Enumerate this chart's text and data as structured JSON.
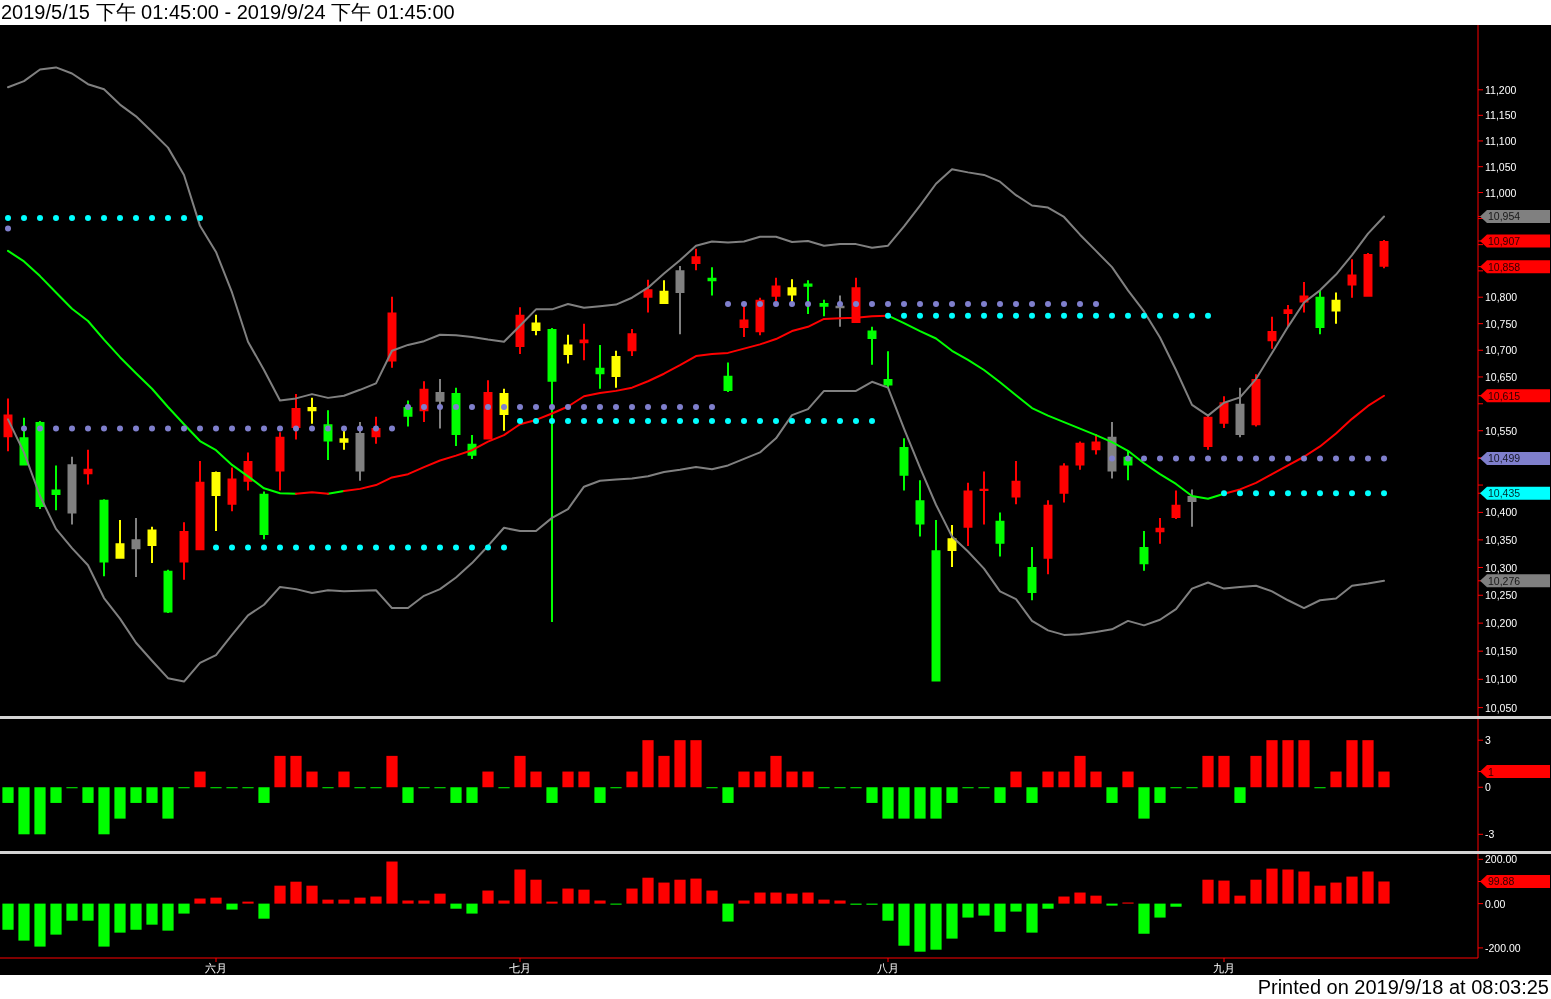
{
  "chart_data": [
    {
      "type": "candlestick",
      "title": "2019/5/15 下午 01:45:00 - 2019/9/24 下午 01:45:00",
      "categories": [
        null,
        null,
        null,
        null,
        null,
        null,
        null,
        null,
        null,
        null,
        null,
        null,
        null,
        null,
        null,
        null,
        null,
        null,
        null,
        null,
        null,
        null,
        null,
        null,
        null,
        null,
        null,
        null,
        null,
        null,
        null,
        null,
        null,
        null,
        null,
        null,
        null,
        null,
        null,
        null,
        null,
        null,
        null,
        null,
        null,
        null,
        null,
        null,
        null,
        null,
        null,
        null,
        null,
        null,
        null,
        null,
        null,
        null,
        null,
        null,
        null,
        null,
        null,
        null,
        null,
        null,
        null,
        null,
        null,
        null,
        null,
        null,
        null,
        null,
        null,
        null,
        null,
        null,
        null,
        null,
        null,
        null,
        null,
        null,
        null,
        null,
        null,
        null,
        null,
        null,
        null,
        null
      ],
      "ohlc": [
        [
          10538,
          10610,
          10512,
          10580
        ],
        [
          10538,
          10574,
          10486,
          10486
        ],
        [
          10566,
          10568,
          10406,
          10410
        ],
        [
          10442,
          10486,
          10404,
          10432
        ],
        [
          10488,
          10502,
          10378,
          10398
        ],
        [
          10470,
          10515,
          10451,
          10480
        ],
        [
          10423,
          10424,
          10284,
          10309
        ],
        [
          10316,
          10386,
          10316,
          10344
        ],
        [
          10351,
          10390,
          10283,
          10333
        ],
        [
          10339,
          10374,
          10308,
          10369
        ],
        [
          10294,
          10296,
          10218,
          10219
        ],
        [
          10309,
          10382,
          10278,
          10366
        ],
        [
          10331,
          10494,
          10331,
          10456
        ],
        [
          10430,
          10475,
          10366,
          10474
        ],
        [
          10414,
          10482,
          10402,
          10462
        ],
        [
          10456,
          10510,
          10440,
          10494
        ],
        [
          10434,
          10438,
          10351,
          10359
        ],
        [
          10475,
          10547,
          10440,
          10539
        ],
        [
          10555,
          10618,
          10534,
          10592
        ],
        [
          10586,
          10611,
          10563,
          10594
        ],
        [
          10562,
          10588,
          10496,
          10530
        ],
        [
          10528,
          10550,
          10515,
          10536
        ],
        [
          10546,
          10566,
          10458,
          10475
        ],
        [
          10538,
          10576,
          10526,
          10555
        ],
        [
          10679,
          10801,
          10667,
          10771
        ],
        [
          10594,
          10606,
          10558,
          10576
        ],
        [
          10586,
          10642,
          10566,
          10628
        ],
        [
          10622,
          10646,
          10554,
          10604
        ],
        [
          10620,
          10630,
          10522,
          10542
        ],
        [
          10526,
          10542,
          10498,
          10504
        ],
        [
          10534,
          10644,
          10534,
          10622
        ],
        [
          10579,
          10628,
          10550,
          10620
        ],
        [
          10706,
          10781,
          10693,
          10767
        ],
        [
          10736,
          10767,
          10728,
          10752
        ],
        [
          10740,
          10742,
          10202,
          10641
        ],
        [
          10691,
          10729,
          10675,
          10711
        ],
        [
          10713,
          10750,
          10681,
          10720
        ],
        [
          10667,
          10710,
          10628,
          10655
        ],
        [
          10650,
          10699,
          10630,
          10689
        ],
        [
          10698,
          10740,
          10689,
          10732
        ],
        [
          10799,
          10833,
          10771,
          10815
        ],
        [
          10787,
          10832,
          10787,
          10812
        ],
        [
          10851,
          10859,
          10730,
          10808
        ],
        [
          10863,
          10892,
          10851,
          10878
        ],
        [
          10837,
          10857,
          10803,
          10830
        ],
        [
          10652,
          10677,
          10622,
          10624
        ],
        [
          10742,
          10785,
          10725,
          10758
        ],
        [
          10734,
          10799,
          10728,
          10795
        ],
        [
          10801,
          10837,
          10793,
          10822
        ],
        [
          10803,
          10834,
          10790,
          10819
        ],
        [
          10826,
          10832,
          10768,
          10820
        ],
        [
          10789,
          10795,
          10764,
          10782
        ],
        [
          10784,
          10803,
          10744,
          10779
        ],
        [
          10751,
          10837,
          10751,
          10819
        ],
        [
          10737,
          10744,
          10673,
          10721
        ],
        [
          10646,
          10698,
          10630,
          10634
        ],
        [
          10520,
          10536,
          10440,
          10467
        ],
        [
          10422,
          10459,
          10356,
          10378
        ],
        [
          10331,
          10386,
          10096,
          10096
        ],
        [
          10330,
          10377,
          10301,
          10353
        ],
        [
          10372,
          10454,
          10339,
          10440
        ],
        [
          10439,
          10475,
          10378,
          10443
        ],
        [
          10385,
          10400,
          10320,
          10343
        ],
        [
          10427,
          10494,
          10415,
          10458
        ],
        [
          10301,
          10337,
          10241,
          10254
        ],
        [
          10316,
          10422,
          10288,
          10414
        ],
        [
          10434,
          10490,
          10418,
          10486
        ],
        [
          10486,
          10530,
          10478,
          10528
        ],
        [
          10514,
          10544,
          10506,
          10530
        ],
        [
          10539,
          10566,
          10462,
          10475
        ],
        [
          10502,
          10514,
          10459,
          10486
        ],
        [
          10337,
          10366,
          10294,
          10306
        ],
        [
          10364,
          10390,
          10343,
          10372
        ],
        [
          10390,
          10440,
          10388,
          10414
        ],
        [
          10430,
          10442,
          10374,
          10419
        ],
        [
          10520,
          10579,
          10515,
          10576
        ],
        [
          10563,
          10614,
          10555,
          10603
        ],
        [
          10600,
          10630,
          10538,
          10542
        ],
        [
          10560,
          10655,
          10558,
          10646
        ],
        [
          10717,
          10763,
          10703,
          10736
        ],
        [
          10768,
          10785,
          10744,
          10777
        ],
        [
          10790,
          10829,
          10771,
          10803
        ],
        [
          10801,
          10813,
          10730,
          10742
        ],
        [
          10773,
          10809,
          10750,
          10795
        ],
        [
          10822,
          10872,
          10799,
          10843
        ],
        [
          10801,
          10884,
          10801,
          10882
        ],
        [
          10858,
          10909,
          10855,
          10907
        ],
        null,
        null,
        null,
        null,
        null
      ],
      "colors": [
        "#ff0000",
        "#00ff00",
        "#00ff00",
        "#00ff00",
        "#808080",
        "#ff0000",
        "#00ff00",
        "#ffff00",
        "#808080",
        "#ffff00",
        "#00ff00",
        "#ff0000",
        "#ff0000",
        "#ffff00",
        "#ff0000",
        "#ff0000",
        "#00ff00",
        "#ff0000",
        "#ff0000",
        "#ffff00",
        "#00ff00",
        "#ffff00",
        "#808080",
        "#ff0000",
        "#ff0000",
        "#00ff00",
        "#ff0000",
        "#808080",
        "#00ff00",
        "#00ff00",
        "#ff0000",
        "#ffff00",
        "#ff0000",
        "#ffff00",
        "#00ff00",
        "#ffff00",
        "#ff0000",
        "#00ff00",
        "#ffff00",
        "#ff0000",
        "#ff0000",
        "#ffff00",
        "#808080",
        "#ff0000",
        "#00ff00",
        "#00ff00",
        "#ff0000",
        "#ff0000",
        "#ff0000",
        "#ffff00",
        "#00ff00",
        "#00ff00",
        "#808080",
        "#ff0000",
        "#00ff00",
        "#00ff00",
        "#00ff00",
        "#00ff00",
        "#00ff00",
        "#ffff00",
        "#ff0000",
        "#ff0000",
        "#00ff00",
        "#ff0000",
        "#00ff00",
        "#ff0000",
        "#ff0000",
        "#ff0000",
        "#ff0000",
        "#808080",
        "#00ff00",
        "#00ff00",
        "#ff0000",
        "#ff0000",
        "#808080",
        "#ff0000",
        "#ff0000",
        "#808080",
        "#ff0000",
        "#ff0000",
        "#ff0000",
        "#ff0000",
        "#00ff00",
        "#ffff00",
        "#ff0000",
        "#ff0000",
        "#ff0000",
        null,
        null,
        null,
        null,
        null
      ],
      "series": [
        {
          "type": "line",
          "color": "#808080",
          "values": [
            11205,
            11217,
            11240,
            11244,
            11232,
            11211,
            11201,
            11171,
            11148,
            11118,
            11087,
            11034,
            10936,
            10886,
            10809,
            10716,
            10663,
            10606,
            10610,
            10618,
            10611,
            10615,
            10626,
            10638,
            10699,
            10710,
            10717,
            10729,
            10728,
            10725,
            10720,
            10716,
            10746,
            10777,
            10777,
            10787,
            10780,
            10783,
            10786,
            10799,
            10818,
            10845,
            10870,
            10898,
            10906,
            10904,
            10906,
            10915,
            10915,
            10905,
            10907,
            10898,
            10901,
            10901,
            10894,
            10898,
            10935,
            10975,
            11017,
            11045,
            11039,
            11034,
            11021,
            10995,
            10975,
            10971,
            10953,
            10919,
            10888,
            10857,
            10813,
            10773,
            10724,
            10663,
            10598,
            10578,
            10602,
            10612,
            10646,
            10695,
            10744,
            10790,
            10813,
            10843,
            10880,
            10921,
            10954,
            null,
            null,
            null,
            null,
            null
          ]
        },
        {
          "type": "line",
          "color": "#808080",
          "values": [
            10571,
            10510,
            10430,
            10370,
            10335,
            10304,
            10245,
            10208,
            10165,
            10133,
            10102,
            10096,
            10129,
            10143,
            10179,
            10214,
            10233,
            10265,
            10261,
            10254,
            10259,
            10257,
            10258,
            10259,
            10227,
            10227,
            10249,
            10261,
            10282,
            10308,
            10339,
            10372,
            10366,
            10366,
            10390,
            10406,
            10447,
            10458,
            10460,
            10462,
            10466,
            10474,
            10478,
            10483,
            10479,
            10486,
            10498,
            10510,
            10536,
            10579,
            10590,
            10624,
            10624,
            10624,
            10641,
            10630,
            10554,
            10482,
            10414,
            10356,
            10329,
            10298,
            10257,
            10243,
            10204,
            10187,
            10179,
            10180,
            10184,
            10189,
            10204,
            10196,
            10206,
            10225,
            10262,
            10273,
            10262,
            10265,
            10267,
            10257,
            10241,
            10227,
            10241,
            10244,
            10267,
            10271,
            10276,
            null,
            null,
            null,
            null,
            null
          ]
        },
        {
          "type": "line",
          "color": "#00ff00",
          "values": [
            10888,
            10868,
            10840,
            10809,
            10778,
            10755,
            10720,
            10687,
            10657,
            10628,
            10594,
            10562,
            10531,
            10514,
            10487,
            10466,
            10444,
            10435,
            10434,
            null,
            10434,
            10439,
            null,
            null,
            null,
            null,
            null,
            null,
            null,
            null,
            null,
            null,
            null,
            null,
            null,
            null,
            null,
            null,
            null,
            null,
            null,
            null,
            null,
            null,
            null,
            null,
            null,
            null,
            null,
            null,
            null,
            null,
            null,
            null,
            null,
            10765,
            10751,
            10736,
            10722,
            10699,
            10682,
            10663,
            10640,
            10616,
            10592,
            10578,
            10566,
            10554,
            10542,
            10529,
            10513,
            10490,
            10470,
            10452,
            10430,
            10425,
            10434,
            null,
            null,
            null,
            null,
            null,
            null,
            null,
            null,
            null,
            null,
            null,
            null,
            null,
            null,
            null
          ]
        },
        {
          "type": "line",
          "color": "#ff0000",
          "values": [
            null,
            null,
            null,
            null,
            null,
            null,
            null,
            null,
            null,
            null,
            null,
            null,
            null,
            null,
            null,
            null,
            null,
            null,
            null,
            null,
            null,
            10439,
            10443,
            10450,
            10464,
            10470,
            10483,
            10495,
            10504,
            10514,
            10530,
            10542,
            10562,
            10570,
            10582,
            10595,
            10614,
            10620,
            10624,
            10630,
            10642,
            10656,
            10672,
            10689,
            10693,
            10695,
            10703,
            10711,
            10721,
            10736,
            10744,
            10759,
            10760,
            10761,
            10764,
            10765,
            null,
            null,
            null,
            null,
            null,
            null,
            null,
            null,
            null,
            null,
            null,
            null,
            null,
            null,
            null,
            null,
            null,
            null,
            null,
            null,
            null,
            null,
            null,
            null,
            null,
            null,
            null,
            null,
            null,
            null,
            null,
            null,
            null,
            null,
            null,
            null
          ]
        },
        {
          "type": "line",
          "color": "#ff0000",
          "values": [
            null,
            null,
            null,
            null,
            null,
            null,
            null,
            null,
            null,
            null,
            null,
            null,
            null,
            null,
            null,
            null,
            null,
            null,
            10434,
            10437,
            10434,
            null,
            null,
            null,
            null,
            null,
            null,
            null,
            null,
            null,
            null,
            null,
            null,
            null,
            null,
            null,
            null,
            null,
            null,
            null,
            null,
            null,
            null,
            null,
            null,
            null,
            null,
            null,
            null,
            null,
            null,
            null,
            null,
            null,
            null,
            null,
            null,
            null,
            null,
            null,
            null,
            null,
            null,
            null,
            null,
            null,
            null,
            null,
            null,
            null,
            null,
            null,
            null,
            null,
            null,
            null,
            10434,
            10442,
            10454,
            10470,
            10486,
            10502,
            10521,
            10545,
            10572,
            10596,
            10615,
            null,
            null,
            null,
            null,
            null
          ]
        },
        {
          "type": "scatter",
          "color": "#7f7fcc",
          "marker": "circle",
          "values": [
            10931,
            10554,
            10554,
            10554,
            10554,
            10554,
            10554,
            10554,
            10554,
            10554,
            10554,
            10554,
            10554,
            10554,
            10554,
            10554,
            10554,
            10554,
            10554,
            10554,
            10554,
            10554,
            10554,
            10554,
            10554,
            10594,
            10594,
            10594,
            10594,
            10594,
            10594,
            10594,
            10594,
            10594,
            10594,
            10594,
            10594,
            10594,
            10594,
            10594,
            10594,
            10594,
            10594,
            10594,
            10594,
            10787,
            10787,
            10787,
            10787,
            10787,
            10787,
            null,
            10787,
            10787,
            10787,
            10787,
            10787,
            10787,
            10787,
            10787,
            10787,
            10787,
            10787,
            10787,
            10787,
            10787,
            10787,
            10787,
            10787,
            10499,
            10499,
            10499,
            10499,
            10499,
            10499,
            10499,
            10499,
            10499,
            10499,
            10499,
            10499,
            10499,
            10499,
            10499,
            10499,
            10499,
            10499,
            null,
            null,
            null,
            null,
            null
          ]
        },
        {
          "type": "scatter",
          "color": "#00ffff",
          "marker": "circle",
          "values": [
            10951,
            10951,
            10951,
            10951,
            10951,
            10951,
            10951,
            10951,
            10951,
            10951,
            10951,
            10951,
            10951,
            10336,
            10336,
            10336,
            10336,
            10336,
            10336,
            10336,
            10336,
            10336,
            10336,
            10336,
            10336,
            10336,
            10336,
            10336,
            10336,
            10336,
            10336,
            10336,
            10568,
            10568,
            10568,
            10568,
            10568,
            10568,
            10568,
            10568,
            10568,
            10568,
            10568,
            10568,
            10568,
            10568,
            10568,
            10568,
            10568,
            10568,
            10568,
            10568,
            10568,
            10568,
            10568,
            10765,
            10765,
            10765,
            10765,
            10765,
            10765,
            10765,
            10765,
            10765,
            10765,
            10765,
            10765,
            10765,
            10765,
            10765,
            10765,
            10765,
            10765,
            10765,
            10765,
            10765,
            10435,
            10435,
            10435,
            10435,
            10435,
            10435,
            10435,
            10435,
            10435,
            10435,
            10435,
            null,
            null,
            null,
            null,
            null
          ]
        }
      ],
      "ylim": [
        10037,
        11328
      ],
      "yticks": [
        {
          "value": 10050,
          "label": "10,050"
        },
        {
          "value": 10100,
          "label": "10,100"
        },
        {
          "value": 10150,
          "label": "10,150"
        },
        {
          "value": 10200,
          "label": "10,200"
        },
        {
          "value": 10250,
          "label": "10,250"
        },
        {
          "value": 10276,
          "label": "10,276"
        },
        {
          "value": 10300,
          "label": "10,300"
        },
        {
          "value": 10350,
          "label": "10,350"
        },
        {
          "value": 10400,
          "label": "10,400"
        },
        {
          "value": 10435,
          "label": "10,435"
        },
        {
          "value": 10450,
          "label": null
        },
        {
          "value": 10499,
          "label": "10,499"
        },
        {
          "value": 10500,
          "label": null
        },
        {
          "value": 10550,
          "label": "10,550"
        },
        {
          "value": 10600,
          "label": null
        },
        {
          "value": 10615,
          "label": "10,615"
        },
        {
          "value": 10650,
          "label": "10,650"
        },
        {
          "value": 10700,
          "label": "10,700"
        },
        {
          "value": 10750,
          "label": "10,750"
        },
        {
          "value": 10800,
          "label": "10,800"
        },
        {
          "value": 10850,
          "label": null
        },
        {
          "value": 10858,
          "label": "10,858"
        },
        {
          "value": 10900,
          "label": null
        },
        {
          "value": 10907,
          "label": "10,907"
        },
        {
          "value": 10950,
          "label": null
        },
        {
          "value": 10954,
          "label": "10,954"
        },
        {
          "value": 11000,
          "label": "11,000"
        },
        {
          "value": 11050,
          "label": "11,050"
        },
        {
          "value": 11100,
          "label": "11,100"
        },
        {
          "value": 11150,
          "label": "11,150"
        },
        {
          "value": 11200,
          "label": "11,200"
        }
      ],
      "log": true,
      "tick_labels": "y"
    },
    {
      "type": "bar",
      "categories": [
        null,
        null,
        null,
        null,
        null,
        null,
        null,
        null,
        null,
        null,
        null,
        null,
        null,
        null,
        null,
        null,
        null,
        null,
        null,
        null,
        null,
        null,
        null,
        null,
        null,
        null,
        null,
        null,
        null,
        null,
        null,
        null,
        null,
        null,
        null,
        null,
        null,
        null,
        null,
        null,
        null,
        null,
        null,
        null,
        null,
        null,
        null,
        null,
        null,
        null,
        null,
        null,
        null,
        null,
        null,
        null,
        null,
        null,
        null,
        null,
        null,
        null,
        null,
        null,
        null,
        null,
        null,
        null,
        null,
        null,
        null,
        null,
        null,
        null,
        null,
        null,
        null,
        null,
        null,
        null,
        null,
        null,
        null,
        null,
        null,
        null,
        null,
        null,
        null,
        null,
        null,
        null
      ],
      "values": [
        -1,
        -3,
        -3,
        -1,
        0,
        -1,
        -3,
        -2,
        -1,
        -1,
        -2,
        0,
        1,
        0,
        0,
        0,
        -1,
        2,
        2,
        1,
        0,
        1,
        0,
        0,
        2,
        -1,
        0,
        0,
        -1,
        -1,
        1,
        0,
        2,
        1,
        -1,
        1,
        1,
        -1,
        0,
        1,
        3,
        2,
        3,
        3,
        0,
        -1,
        1,
        1,
        2,
        1,
        1,
        0,
        0,
        0,
        -1,
        -2,
        -2,
        -2,
        -2,
        -1,
        0,
        0,
        -1,
        1,
        -1,
        1,
        1,
        2,
        1,
        -1,
        1,
        -2,
        -1,
        0,
        0,
        2,
        2,
        -1,
        2,
        3,
        3,
        3,
        0,
        1,
        3,
        3,
        1,
        null,
        null,
        null,
        null,
        null
      ],
      "colors": [
        "#00ff00",
        "#00ff00",
        "#00ff00",
        "#00ff00",
        "#00ff00",
        "#00ff00",
        "#00ff00",
        "#00ff00",
        "#00ff00",
        "#00ff00",
        "#00ff00",
        "#00ff00",
        "#ff0000",
        "#00ff00",
        "#00ff00",
        "#00ff00",
        "#00ff00",
        "#ff0000",
        "#ff0000",
        "#ff0000",
        "#00ff00",
        "#ff0000",
        "#00ff00",
        "#00ff00",
        "#ff0000",
        "#00ff00",
        "#00ff00",
        "#00ff00",
        "#00ff00",
        "#00ff00",
        "#ff0000",
        "#00ff00",
        "#ff0000",
        "#ff0000",
        "#00ff00",
        "#ff0000",
        "#ff0000",
        "#00ff00",
        "#00ff00",
        "#ff0000",
        "#ff0000",
        "#ff0000",
        "#ff0000",
        "#ff0000",
        "#00ff00",
        "#00ff00",
        "#ff0000",
        "#ff0000",
        "#ff0000",
        "#ff0000",
        "#ff0000",
        "#00ff00",
        "#00ff00",
        "#00ff00",
        "#00ff00",
        "#00ff00",
        "#00ff00",
        "#00ff00",
        "#00ff00",
        "#00ff00",
        "#00ff00",
        "#00ff00",
        "#00ff00",
        "#ff0000",
        "#00ff00",
        "#ff0000",
        "#ff0000",
        "#ff0000",
        "#ff0000",
        "#00ff00",
        "#ff0000",
        "#00ff00",
        "#00ff00",
        "#00ff00",
        "#00ff00",
        "#ff0000",
        "#ff0000",
        "#00ff00",
        "#ff0000",
        "#ff0000",
        "#ff0000",
        "#ff0000",
        "#00ff00",
        "#ff0000",
        "#ff0000",
        "#ff0000",
        "#ff0000",
        null,
        null,
        null,
        null,
        null
      ],
      "ylim": [
        -4,
        4.35
      ],
      "yticks": [
        3,
        1,
        0,
        -3
      ],
      "tick_labels": "y"
    },
    {
      "type": "bar",
      "categories": [
        null,
        null,
        null,
        null,
        null,
        null,
        null,
        null,
        null,
        null,
        null,
        null,
        null,
        "六月",
        null,
        null,
        null,
        null,
        null,
        null,
        null,
        null,
        null,
        null,
        null,
        null,
        null,
        null,
        null,
        null,
        null,
        null,
        "七月",
        null,
        null,
        null,
        null,
        null,
        null,
        null,
        null,
        null,
        null,
        null,
        null,
        null,
        null,
        null,
        null,
        null,
        null,
        null,
        null,
        null,
        null,
        "八月",
        null,
        null,
        null,
        null,
        null,
        null,
        null,
        null,
        null,
        null,
        null,
        null,
        null,
        null,
        null,
        null,
        null,
        null,
        null,
        null,
        "九月",
        null,
        null,
        null,
        null,
        null,
        null,
        null,
        null,
        null,
        null,
        null,
        null,
        null,
        null,
        null
      ],
      "values": [
        -118,
        -167,
        -194,
        -140,
        -77,
        -77,
        -194,
        -131,
        -118,
        -95,
        -122,
        -45,
        23,
        27,
        -27,
        9,
        -68,
        81,
        99,
        81,
        18,
        18,
        27,
        32,
        190,
        14,
        14,
        45,
        -23,
        -45,
        59,
        14,
        154,
        108,
        9,
        68,
        63,
        14,
        -2,
        68,
        117,
        95,
        108,
        113,
        59,
        -81,
        14,
        50,
        50,
        45,
        50,
        18,
        14,
        -5,
        -5,
        -77,
        -190,
        -217,
        -208,
        -158,
        -63,
        -54,
        -127,
        -36,
        -131,
        -23,
        32,
        50,
        36,
        -9,
        5,
        -136,
        -63,
        -14,
        null,
        108,
        104,
        36,
        108,
        158,
        154,
        145,
        81,
        95,
        122,
        145,
        99.88,
        null,
        null,
        null,
        null,
        null
      ],
      "colors": [
        "#00ff00",
        "#00ff00",
        "#00ff00",
        "#00ff00",
        "#00ff00",
        "#00ff00",
        "#00ff00",
        "#00ff00",
        "#00ff00",
        "#00ff00",
        "#00ff00",
        "#00ff00",
        "#ff0000",
        "#ff0000",
        "#00ff00",
        "#ff0000",
        "#00ff00",
        "#ff0000",
        "#ff0000",
        "#ff0000",
        "#ff0000",
        "#ff0000",
        "#ff0000",
        "#ff0000",
        "#ff0000",
        "#ff0000",
        "#ff0000",
        "#ff0000",
        "#00ff00",
        "#00ff00",
        "#ff0000",
        "#ff0000",
        "#ff0000",
        "#ff0000",
        "#ff0000",
        "#ff0000",
        "#ff0000",
        "#ff0000",
        "#00ff00",
        "#ff0000",
        "#ff0000",
        "#ff0000",
        "#ff0000",
        "#ff0000",
        "#ff0000",
        "#00ff00",
        "#ff0000",
        "#ff0000",
        "#ff0000",
        "#ff0000",
        "#ff0000",
        "#ff0000",
        "#ff0000",
        "#00ff00",
        "#00ff00",
        "#00ff00",
        "#00ff00",
        "#00ff00",
        "#00ff00",
        "#00ff00",
        "#00ff00",
        "#00ff00",
        "#00ff00",
        "#00ff00",
        "#00ff00",
        "#00ff00",
        "#ff0000",
        "#ff0000",
        "#ff0000",
        "#00ff00",
        "#ff0000",
        "#00ff00",
        "#00ff00",
        "#00ff00",
        null,
        "#ff0000",
        "#ff0000",
        "#ff0000",
        "#ff0000",
        "#ff0000",
        "#ff0000",
        "#ff0000",
        "#ff0000",
        "#ff0000",
        "#ff0000",
        "#ff0000",
        "#ff0000",
        null,
        null,
        null,
        null,
        null
      ],
      "ylim": [
        -241,
        224
      ],
      "yticks": [
        {
          "value": 200,
          "label": "200.00"
        },
        {
          "value": 99.88,
          "label": "99.88"
        },
        {
          "value": 0,
          "label": "0.00"
        },
        {
          "value": -200,
          "label": "-200.00"
        }
      ],
      "annotations": [
        "Printed on 2019/9/18 at 08:03:25"
      ]
    }
  ]
}
